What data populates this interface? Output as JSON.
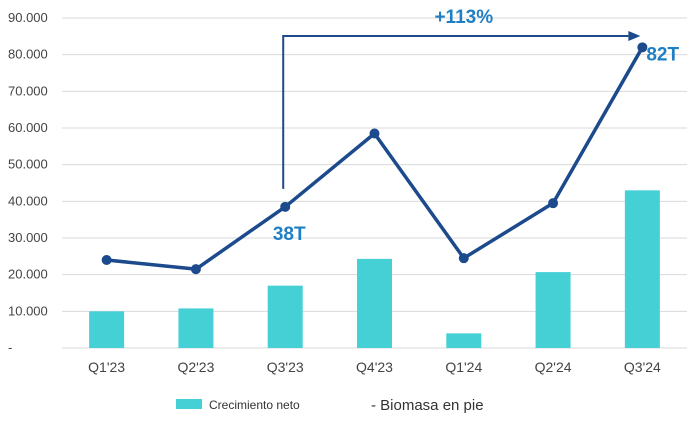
{
  "chart_data": {
    "type": "bar",
    "categories": [
      "Q1'23",
      "Q2'23",
      "Q3'23",
      "Q4'23",
      "Q1'24",
      "Q2'24",
      "Q3'24"
    ],
    "y_ticks": [
      "-",
      "10.000",
      "20.000",
      "30.000",
      "40.000",
      "50.000",
      "60.000",
      "70.000",
      "80.000",
      "90.000"
    ],
    "ylim": [
      0,
      90000
    ],
    "grid": true,
    "series": [
      {
        "name": "Crecimiento neto",
        "type": "bar",
        "color": "#45d0d6",
        "values": [
          10000,
          10800,
          17000,
          24300,
          4000,
          20700,
          43000
        ]
      },
      {
        "name": "- Biomasa en pie",
        "type": "line",
        "color": "#1c4a8c",
        "values": [
          24000,
          21500,
          38500,
          58500,
          24500,
          39500,
          82000
        ]
      }
    ],
    "annotations": {
      "q3_23_label": "38T",
      "q3_24_label": "82T",
      "growth_label": "+113%"
    },
    "legend_position": "bottom"
  }
}
